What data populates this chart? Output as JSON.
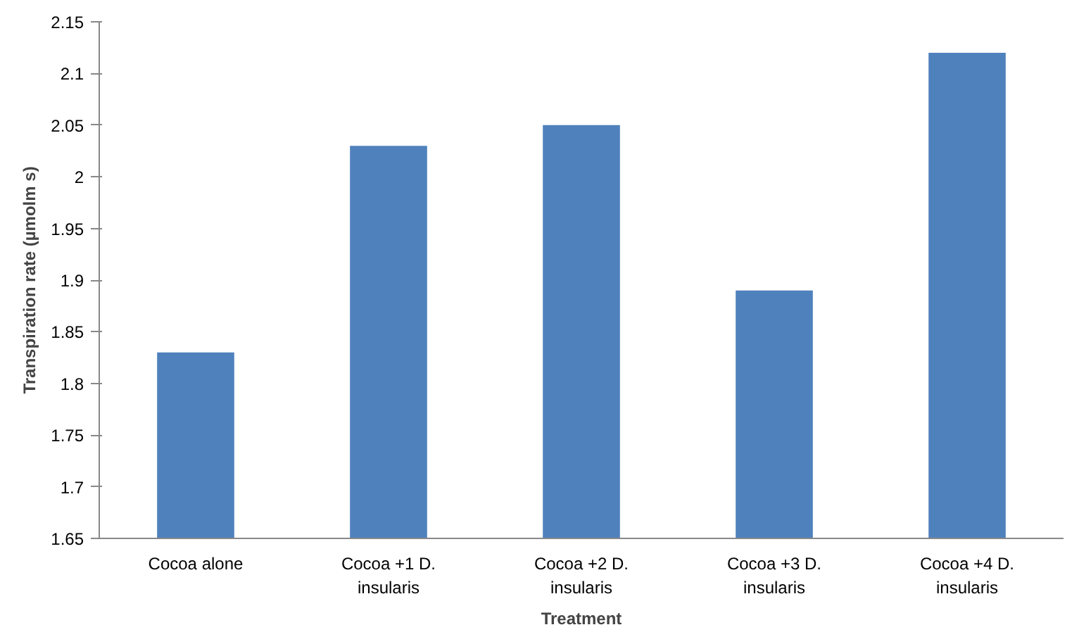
{
  "chart_data": {
    "type": "bar",
    "xlabel": "Treatment",
    "ylabel": "Transpiration rate (µmolm s)",
    "categories": [
      "Cocoa alone",
      "Cocoa +1 D.\ninsularis",
      "Cocoa +2 D.\ninsularis",
      "Cocoa +3 D.\ninsularis",
      "Cocoa +4 D.\ninsularis"
    ],
    "values": [
      1.83,
      2.03,
      2.05,
      1.89,
      2.12
    ],
    "color": "#4f81bd",
    "ylim": [
      1.65,
      2.15
    ],
    "yticks": [
      1.65,
      1.7,
      1.75,
      1.8,
      1.85,
      1.9,
      1.95,
      2,
      2.05,
      2.1,
      2.15
    ],
    "grid": false
  }
}
